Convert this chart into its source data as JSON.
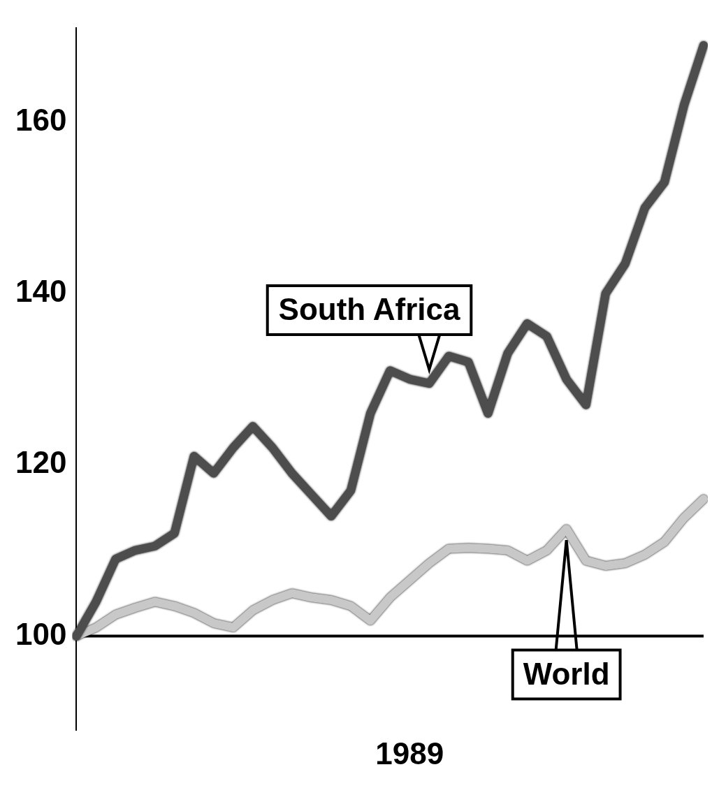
{
  "chart_data": {
    "type": "line",
    "categories": [
      null,
      null,
      null,
      null,
      null,
      null,
      null,
      null,
      null,
      null,
      null,
      null,
      null,
      null,
      null,
      null,
      null,
      "1989",
      null,
      null,
      null,
      null,
      null,
      null,
      null,
      null,
      null,
      null,
      null,
      null,
      null,
      null,
      null
    ],
    "series": [
      {
        "name": "South Africa",
        "color": "#4d4d4d",
        "values": [
          100,
          104,
          109,
          110,
          110.5,
          112,
          121,
          119,
          122,
          124.5,
          122,
          119,
          116.5,
          114,
          117,
          126,
          131,
          130,
          129.5,
          132.7,
          132,
          126,
          133,
          136.5,
          135,
          130,
          127,
          140,
          143.5,
          150,
          153,
          162,
          169
        ]
      },
      {
        "name": "World",
        "color": "#c8c8c8",
        "values": [
          100,
          101,
          102.5,
          103.3,
          104,
          103.5,
          102.7,
          101.5,
          101,
          103,
          104.2,
          105,
          104.5,
          104.2,
          103.5,
          101.8,
          104.5,
          106.5,
          108.5,
          110.2,
          110.3,
          110.2,
          110,
          108.8,
          110,
          112.5,
          108.8,
          108.2,
          108.5,
          109.5,
          111,
          113.8,
          116
        ]
      }
    ],
    "ylim": [
      89,
      171
    ],
    "yticks": [
      100,
      120,
      140,
      160
    ],
    "grid": false,
    "legend": false,
    "marker": "none",
    "line_style": "solid",
    "ref_lines": [
      {
        "axis": "y",
        "value": 100,
        "color": "#000000"
      }
    ]
  }
}
